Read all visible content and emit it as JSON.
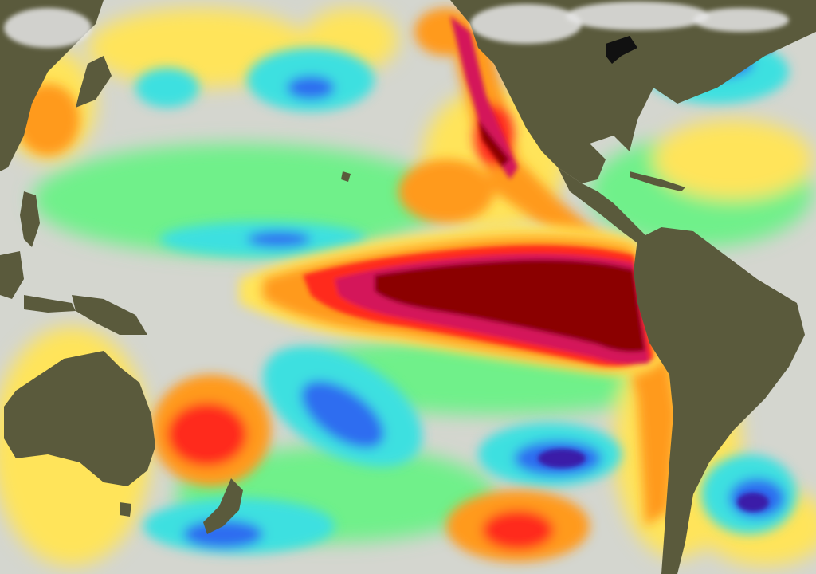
{
  "map": {
    "kind": "sea-surface-height-anomaly",
    "ocean_background": "#d4d6cf",
    "land_color": "#5a5a3c",
    "anomaly_colors": {
      "deep_low": "#3b1fa8",
      "low": "#2f6df0",
      "mid_low": "#3ce0e0",
      "slight_low": "#6ff08a",
      "neutral": "#d8d8d2",
      "slight_high": "#ffe45a",
      "high": "#ff9a1e",
      "very_high": "#ff2a1a",
      "extreme_high": "#d4145a",
      "max_high": "#8b0000"
    },
    "snow_color": "#e6e6e6"
  }
}
